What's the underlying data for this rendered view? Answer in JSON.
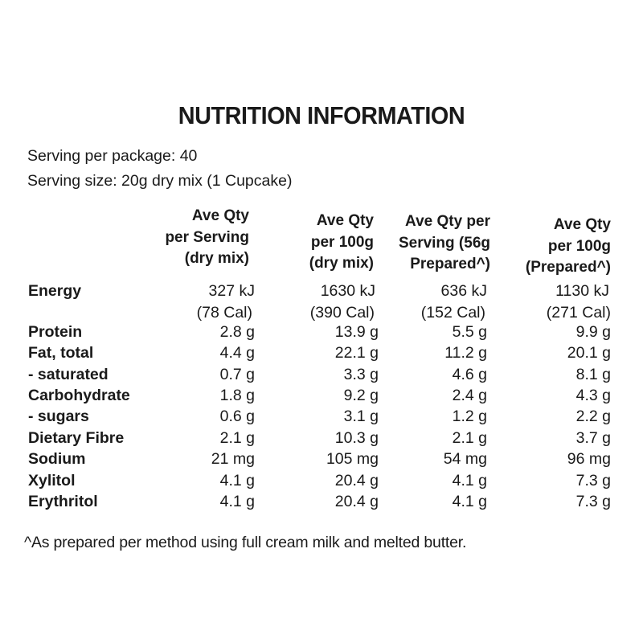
{
  "title": "NUTRITION INFORMATION",
  "serving_per_package": "Serving per package: 40",
  "serving_size": "Serving size: 20g dry mix (1 Cupcake)",
  "columns": [
    [
      "Ave Qty",
      "per Serving",
      "(dry mix)"
    ],
    [
      "Ave Qty",
      "per 100g",
      "(dry mix)"
    ],
    [
      "Ave Qty per",
      "Serving (56g",
      "Prepared^)"
    ],
    [
      "Ave Qty",
      "per 100g",
      "(Prepared^)"
    ]
  ],
  "energy": {
    "label": "Energy",
    "kj": [
      "327 kJ",
      "1630 kJ",
      "636 kJ",
      "1130 kJ"
    ],
    "cal": [
      "(78 Cal)",
      "(390 Cal)",
      "(152 Cal)",
      "(271 Cal)"
    ]
  },
  "rows": [
    {
      "label": "Protein",
      "values": [
        "2.8 g",
        "13.9 g",
        "5.5 g",
        "9.9 g"
      ]
    },
    {
      "label": "Fat, total",
      "values": [
        "4.4 g",
        "22.1 g",
        "11.2 g",
        "20.1 g"
      ]
    },
    {
      "label": "- saturated",
      "values": [
        "0.7 g",
        "3.3 g",
        "4.6 g",
        "8.1 g"
      ]
    },
    {
      "label": "Carbohydrate",
      "values": [
        "1.8 g",
        "9.2 g",
        "2.4 g",
        "4.3 g"
      ]
    },
    {
      "label": "- sugars",
      "values": [
        "0.6 g",
        "3.1 g",
        "1.2 g",
        "2.2 g"
      ]
    },
    {
      "label": "Dietary Fibre",
      "values": [
        "2.1 g",
        "10.3 g",
        "2.1 g",
        "3.7 g"
      ]
    },
    {
      "label": "Sodium",
      "values": [
        "21 mg",
        "105 mg",
        "54 mg",
        "96 mg"
      ]
    },
    {
      "label": "Xylitol",
      "values": [
        "4.1 g",
        "20.4 g",
        "4.1 g",
        "7.3 g"
      ]
    },
    {
      "label": "Erythritol",
      "values": [
        "4.1 g",
        "20.4 g",
        "4.1 g",
        "7.3 g"
      ]
    }
  ],
  "footnote": "^As prepared per method using full cream milk and melted butter."
}
